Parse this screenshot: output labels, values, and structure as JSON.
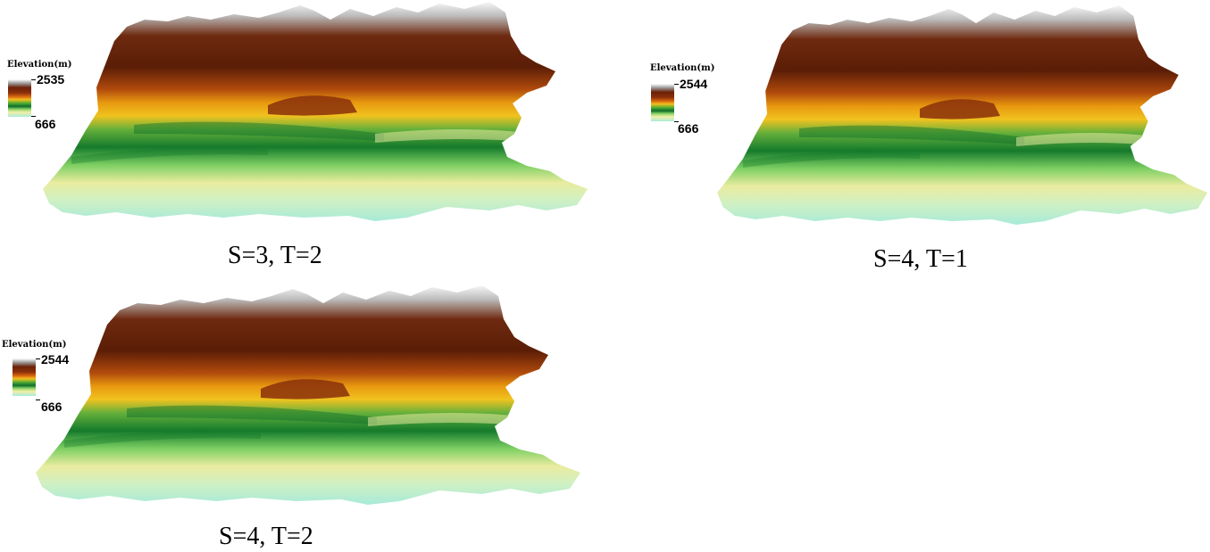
{
  "legend_title": "Elevation(m)",
  "colormap": [
    "#ffffff",
    "#5a1a05",
    "#8a2e08",
    "#e07a10",
    "#f2c01e",
    "#2f9f2f",
    "#0e6e2a",
    "#8ed66a",
    "#f3efa8",
    "#a9ecd8"
  ],
  "panels": [
    {
      "caption": "S=3, T=2",
      "max": "2535",
      "min": "666"
    },
    {
      "caption": "S=4, T=1",
      "max": "2544",
      "min": "666"
    },
    {
      "caption": "S=4, T=2",
      "max": "2544",
      "min": "666"
    }
  ]
}
